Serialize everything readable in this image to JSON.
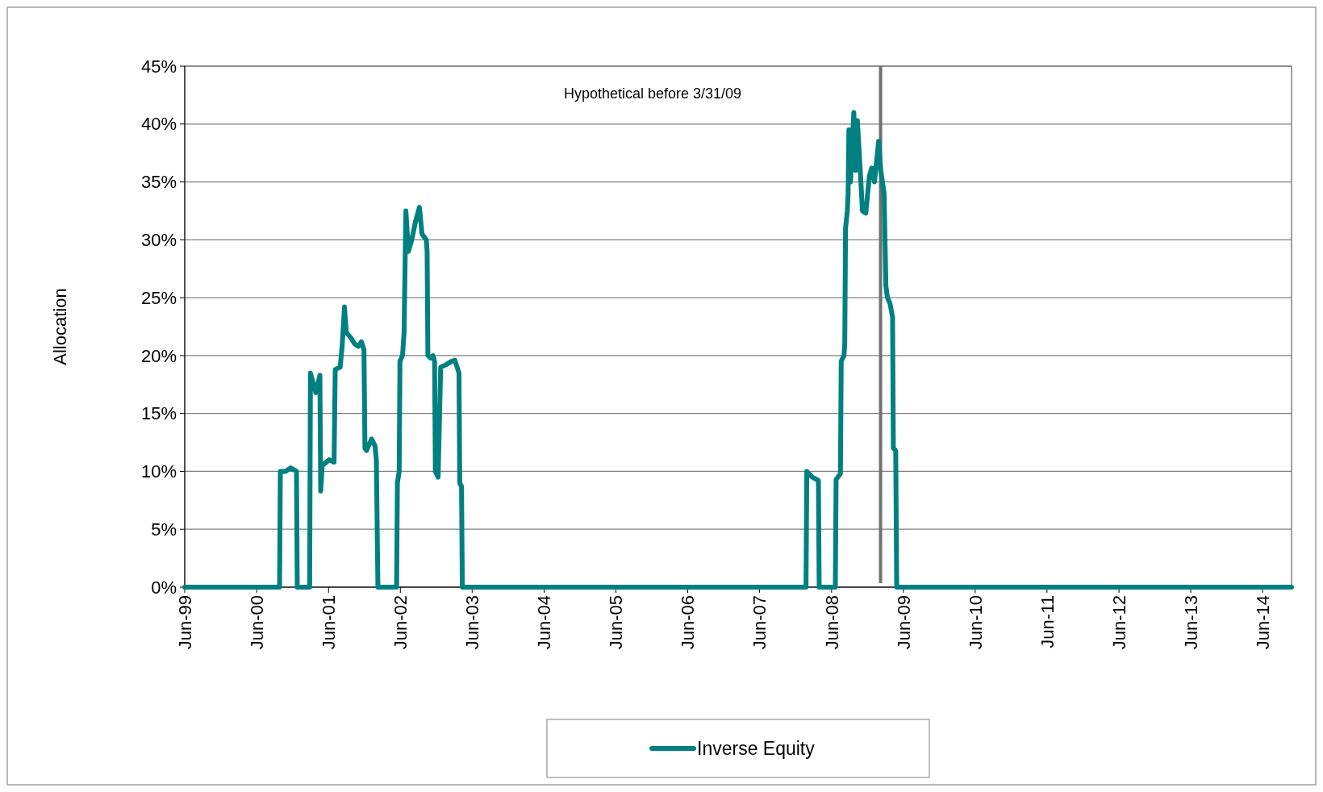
{
  "chart_data": {
    "type": "line",
    "ylabel": "Allocation",
    "xlim": [
      "1999-06-30",
      "2014-11-24"
    ],
    "xticks": [
      {
        "value": "1999-06-30",
        "label": "Jun-99"
      },
      {
        "value": "2000-06-30",
        "label": "Jun-00"
      },
      {
        "value": "2001-06-30",
        "label": "Jun-01"
      },
      {
        "value": "2002-06-30",
        "label": "Jun-02"
      },
      {
        "value": "2003-06-30",
        "label": "Jun-03"
      },
      {
        "value": "2004-06-30",
        "label": "Jun-04"
      },
      {
        "value": "2005-06-30",
        "label": "Jun-05"
      },
      {
        "value": "2006-06-30",
        "label": "Jun-06"
      },
      {
        "value": "2007-06-30",
        "label": "Jun-07"
      },
      {
        "value": "2008-06-30",
        "label": "Jun-08"
      },
      {
        "value": "2009-06-30",
        "label": "Jun-09"
      },
      {
        "value": "2010-06-30",
        "label": "Jun-10"
      },
      {
        "value": "2011-06-30",
        "label": "Jun-11"
      },
      {
        "value": "2012-06-30",
        "label": "Jun-12"
      },
      {
        "value": "2013-06-30",
        "label": "Jun-13"
      },
      {
        "value": "2014-06-30",
        "label": "Jun-14"
      }
    ],
    "ylim": [
      0,
      45
    ],
    "yticks": [
      {
        "value": 0,
        "label": "0%"
      },
      {
        "value": 5,
        "label": "5%"
      },
      {
        "value": 10,
        "label": "10%"
      },
      {
        "value": 15,
        "label": "15%"
      },
      {
        "value": 20,
        "label": "20%"
      },
      {
        "value": 25,
        "label": "25%"
      },
      {
        "value": 30,
        "label": "30%"
      },
      {
        "value": 35,
        "label": "35%"
      },
      {
        "value": 40,
        "label": "40%"
      },
      {
        "value": 45,
        "label": "45%"
      }
    ],
    "grid": "y",
    "legend": "bottom",
    "marker": "none",
    "line_style": "solid",
    "ref_lines": [
      {
        "axis": "x",
        "value": "2009-03-06",
        "color": "#707070"
      }
    ],
    "annotations": [
      "Hypothetical before 3/31/09"
    ],
    "series": [
      {
        "name": "Inverse Equity",
        "color": "#008080",
        "x": [
          "1999-06-30",
          "2000-10-24",
          "2000-10-28",
          "2000-11-23",
          "2000-12-19",
          "2001-01-18",
          "2001-01-22",
          "2001-03-26",
          "2001-03-30",
          "2001-04-26",
          "2001-05-17",
          "2001-05-21",
          "2001-05-29",
          "2001-07-03",
          "2001-07-28",
          "2001-08-03",
          "2001-08-28",
          "2001-09-07",
          "2001-09-19",
          "2001-09-28",
          "2001-10-23",
          "2001-11-10",
          "2001-11-27",
          "2001-12-14",
          "2001-12-27",
          "2002-01-01",
          "2002-01-09",
          "2002-02-04",
          "2002-02-21",
          "2002-02-28",
          "2002-03-08",
          "2002-06-11",
          "2002-06-15",
          "2002-06-24",
          "2002-06-28",
          "2002-07-11",
          "2002-07-19",
          "2002-07-28",
          "2002-08-10",
          "2002-08-27",
          "2002-09-14",
          "2002-10-05",
          "2002-10-18",
          "2002-11-09",
          "2002-11-13",
          "2002-11-17",
          "2002-11-30",
          "2002-12-13",
          "2002-12-21",
          "2002-12-25",
          "2003-01-08",
          "2003-01-21",
          "2003-02-16",
          "2003-03-16",
          "2003-04-03",
          "2003-04-24",
          "2003-04-28",
          "2003-05-07",
          "2003-05-11",
          "2008-02-21",
          "2008-02-25",
          "2008-03-24",
          "2008-04-24",
          "2008-04-28",
          "2008-07-19",
          "2008-07-23",
          "2008-08-14",
          "2008-08-18",
          "2008-09-01",
          "2008-09-05",
          "2008-09-09",
          "2008-09-18",
          "2008-09-22",
          "2008-09-26",
          "2008-10-04",
          "2008-10-21",
          "2008-10-30",
          "2008-11-08",
          "2008-11-21",
          "2008-12-04",
          "2008-12-21",
          "2009-01-08",
          "2009-01-20",
          "2009-02-03",
          "2009-02-24",
          "2009-03-07",
          "2009-03-24",
          "2009-04-02",
          "2009-04-10",
          "2009-04-23",
          "2009-05-06",
          "2009-05-10",
          "2009-05-22",
          "2009-05-27",
          "2014-11-24"
        ],
        "values": [
          0,
          0,
          10,
          10,
          10.3,
          10,
          0,
          0,
          18.5,
          16.8,
          18.3,
          8.3,
          10.5,
          11,
          10.8,
          18.8,
          19,
          20.8,
          24.2,
          22,
          21.5,
          21,
          20.8,
          21.2,
          20.5,
          12,
          11.8,
          12.8,
          12.2,
          11,
          0,
          0,
          9,
          10,
          19.5,
          20,
          22,
          32.5,
          29,
          30,
          31.5,
          32.8,
          30.5,
          30,
          29,
          20,
          19.8,
          20,
          19.5,
          10,
          9.5,
          19,
          19.2,
          19.5,
          19.6,
          18.5,
          9,
          8.7,
          0,
          0,
          10,
          9.5,
          9.2,
          0,
          0,
          9.3,
          9.8,
          19.5,
          20,
          21,
          31,
          32.5,
          34,
          39.5,
          35,
          41,
          36,
          40.3,
          36.5,
          32.5,
          32.3,
          35.5,
          36.2,
          35,
          38.5,
          36,
          34,
          26,
          25,
          24.5,
          23.3,
          12,
          11.8,
          0,
          0
        ]
      }
    ]
  }
}
